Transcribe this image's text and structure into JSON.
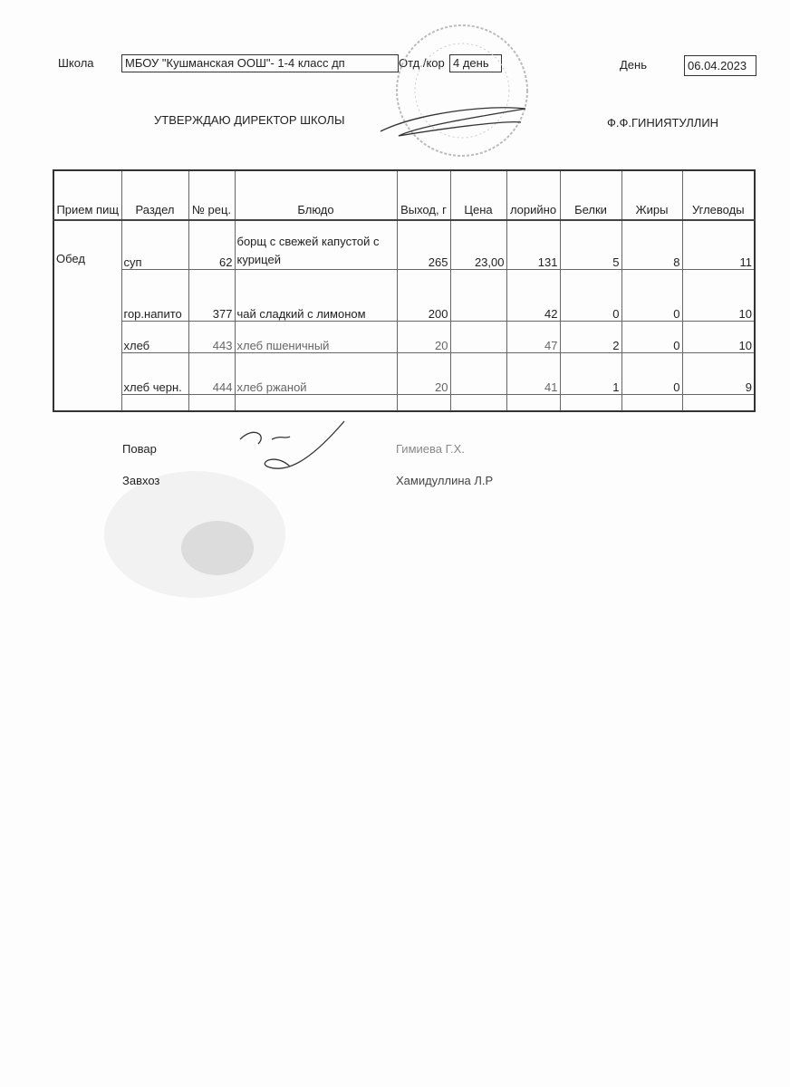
{
  "header": {
    "school_label": "Школа",
    "school_value": "МБОУ \"Кушманская ООШ\"- 1-4 класс дп",
    "dept_label": "Отд./кор",
    "dept_value": "4 день",
    "day_label": "День",
    "day_value": "06.04.2023",
    "approve_label": "УТВЕРЖДАЮ ДИРЕКТОР  ШКОЛЫ",
    "director": "Ф.Ф.ГИНИЯТУЛЛИН"
  },
  "table": {
    "columns": [
      "Прием пищ",
      "Раздел",
      "№ рец.",
      "Блюдо",
      "Выход, г",
      "Цена",
      "лорийно",
      "Белки",
      "Жиры",
      "Углеводы"
    ],
    "rows": [
      {
        "meal": "Обед",
        "section": "суп",
        "recipe": "62",
        "dish": "борщ с свежей капустой с курицей",
        "yield": "265",
        "price": "23,00",
        "kcal": "131",
        "protein": "5",
        "fat": "8",
        "carbs": "11"
      },
      {
        "meal": "",
        "section": "гор.напито",
        "recipe": "377",
        "dish": "чай сладкий с лимоном",
        "yield": "200",
        "price": "",
        "kcal": "42",
        "protein": "0",
        "fat": "0",
        "carbs": "10"
      },
      {
        "meal": "",
        "section": "хлеб",
        "recipe": "443",
        "dish": "хлеб пшеничный",
        "yield": "20",
        "price": "",
        "kcal": "47",
        "protein": "2",
        "fat": "0",
        "carbs": "10"
      },
      {
        "meal": "",
        "section": "хлеб черн.",
        "recipe": "444",
        "dish": "хлеб ржаной",
        "yield": "20",
        "price": "",
        "kcal": "41",
        "protein": "1",
        "fat": "0",
        "carbs": "9"
      }
    ]
  },
  "footer": {
    "cook_label": "Повар",
    "cook_name": "Гимиева Г.Х.",
    "manager_label": "Завхоз",
    "manager_name": "Хамидуллина Л.Р"
  }
}
